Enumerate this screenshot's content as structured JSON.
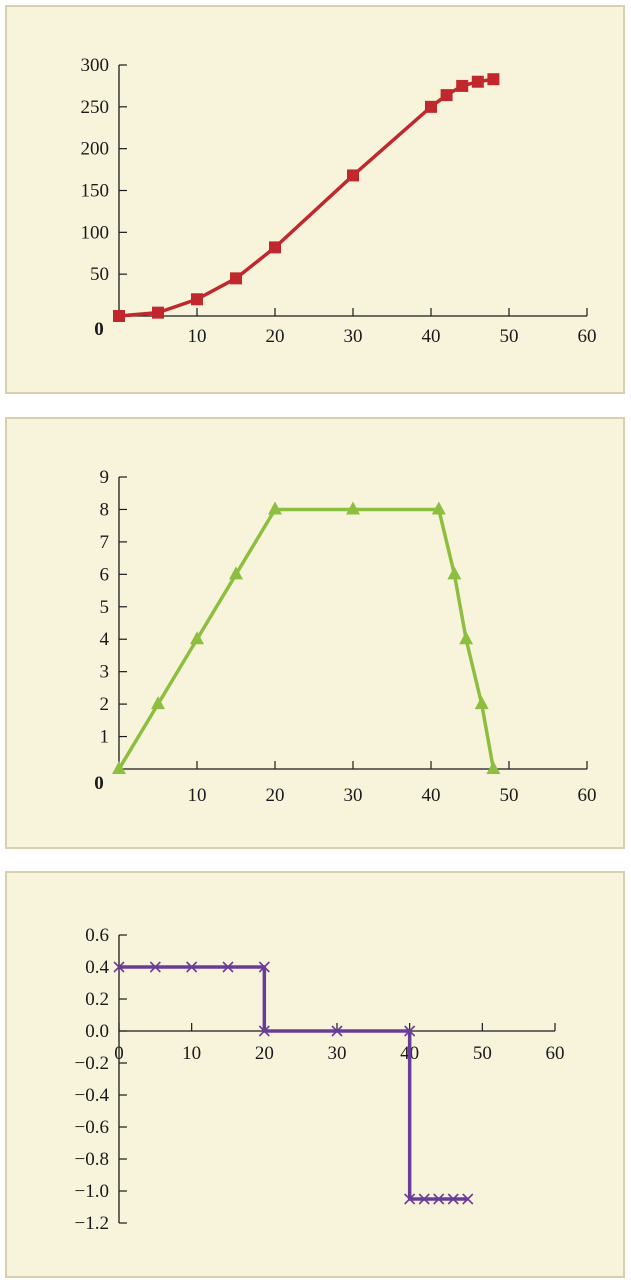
{
  "chart_data": [
    {
      "type": "line",
      "title": "",
      "xlabel": "",
      "ylabel": "",
      "xlim": [
        0,
        60
      ],
      "ylim": [
        0,
        300
      ],
      "x_ticks": [
        "10",
        "20",
        "30",
        "40",
        "50",
        "60"
      ],
      "y_ticks": [
        "50",
        "100",
        "150",
        "200",
        "250",
        "300"
      ],
      "origin_label": "0",
      "marker": "square",
      "color": "#c0282d",
      "series": [
        {
          "x": [
            0,
            5,
            10,
            15,
            20,
            30,
            40,
            42,
            44,
            46,
            48
          ],
          "y": [
            0,
            4,
            20,
            45,
            82,
            168,
            250,
            264,
            275,
            280,
            283
          ]
        }
      ]
    },
    {
      "type": "line",
      "title": "",
      "xlabel": "",
      "ylabel": "",
      "xlim": [
        0,
        60
      ],
      "ylim": [
        0,
        9
      ],
      "x_ticks": [
        "10",
        "20",
        "30",
        "40",
        "50",
        "60"
      ],
      "y_ticks": [
        "1",
        "2",
        "3",
        "4",
        "5",
        "6",
        "7",
        "8",
        "9"
      ],
      "origin_label": "0",
      "marker": "triangle",
      "color": "#8cbf3f",
      "series": [
        {
          "x": [
            0,
            5,
            10,
            15,
            20,
            30,
            41,
            43,
            44.5,
            46.5,
            48
          ],
          "y": [
            0,
            2,
            4,
            6,
            8,
            8,
            8,
            6,
            4,
            2,
            0
          ]
        }
      ]
    },
    {
      "type": "line",
      "title": "",
      "xlabel": "",
      "ylabel": "",
      "xlim": [
        0,
        60
      ],
      "ylim": [
        -1.2,
        0.6
      ],
      "x_ticks": [
        "0",
        "10",
        "20",
        "30",
        "40",
        "50",
        "60"
      ],
      "y_ticks": [
        "0.6",
        "0.4",
        "0.2",
        "0.0",
        "−0.2",
        "−0.4",
        "−0.6",
        "−0.8",
        "−1.0",
        "−1.2"
      ],
      "marker": "x",
      "color": "#6a3c9a",
      "series": [
        {
          "x": [
            0,
            5,
            10,
            15,
            20,
            20,
            30,
            40,
            40,
            42,
            44,
            46,
            48
          ],
          "y": [
            0.4,
            0.4,
            0.4,
            0.4,
            0.4,
            0,
            0,
            0,
            -1.05,
            -1.05,
            -1.05,
            -1.05,
            -1.05
          ]
        }
      ]
    }
  ]
}
